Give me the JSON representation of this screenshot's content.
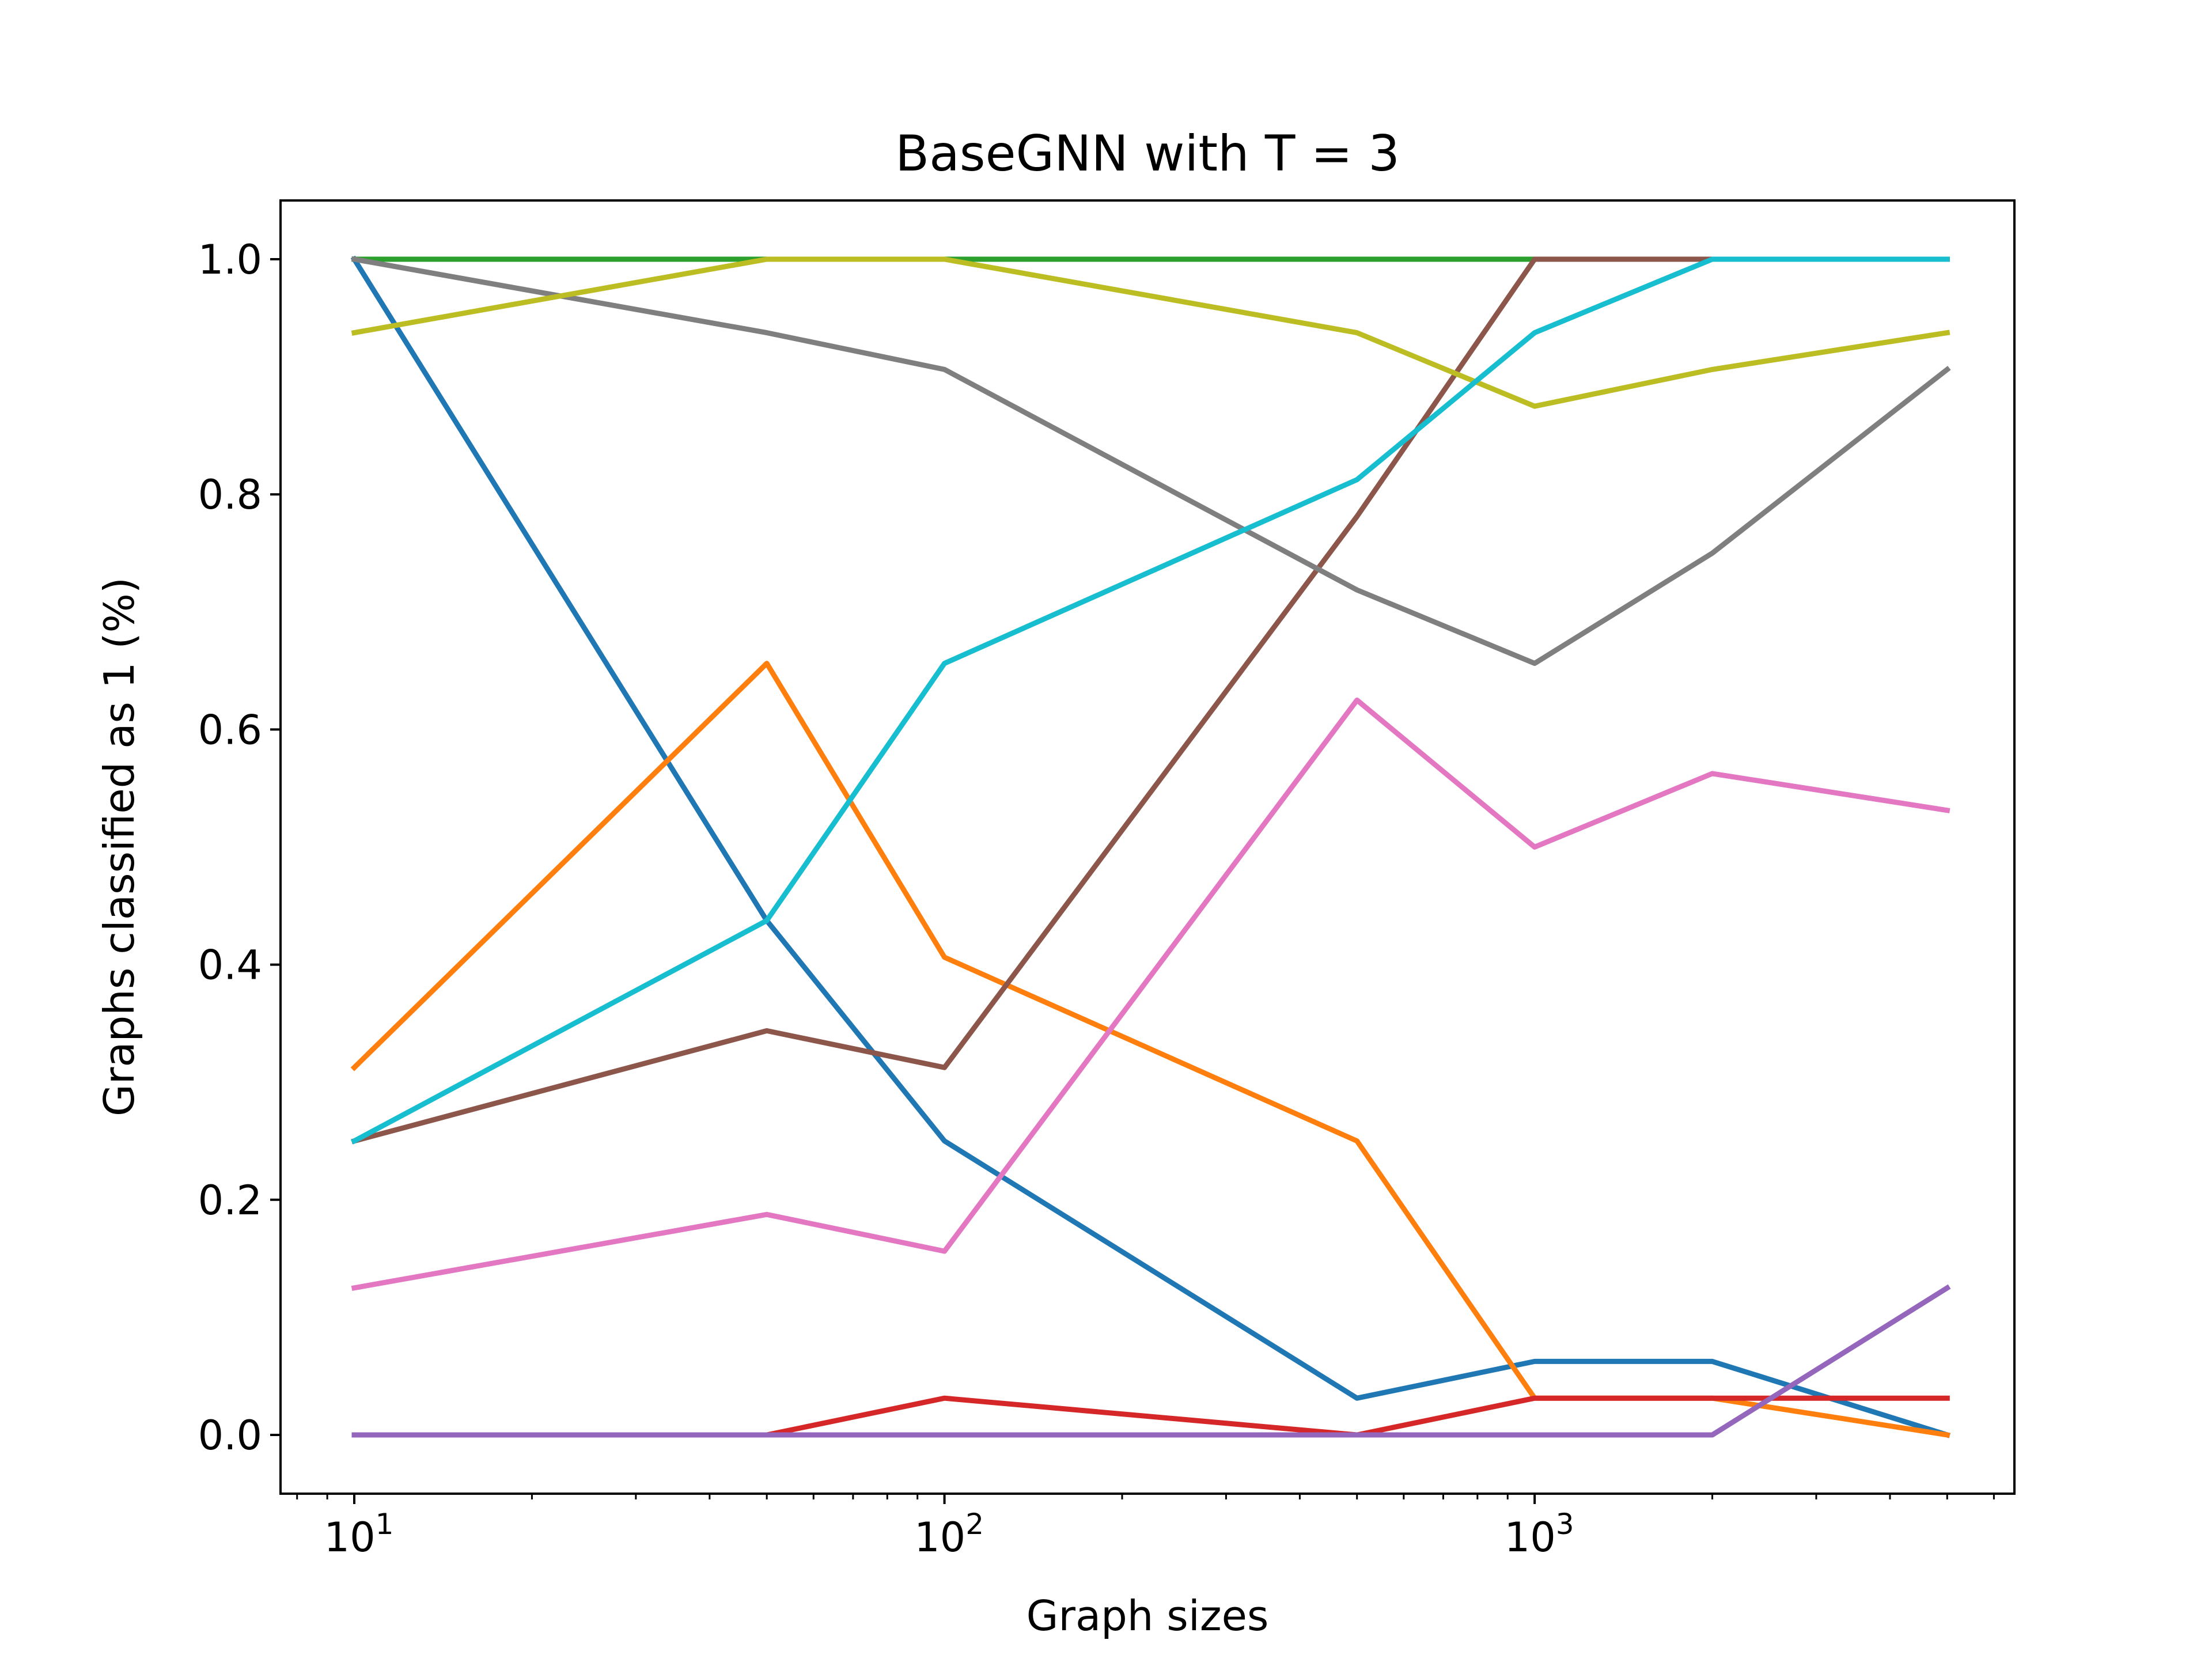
{
  "chart_data": {
    "type": "line",
    "title": "BaseGNN with T = 3",
    "xlabel": "Graph sizes",
    "ylabel": "Graphs classified as 1 (%)",
    "x_scale": "log",
    "xlim": [
      7.5,
      6500
    ],
    "ylim": [
      -0.05,
      1.05
    ],
    "x_ticks": [
      {
        "value": 10,
        "base": "10",
        "exp": "1"
      },
      {
        "value": 100,
        "base": "10",
        "exp": "2"
      },
      {
        "value": 1000,
        "base": "10",
        "exp": "3"
      }
    ],
    "y_ticks": [
      {
        "value": 0.0,
        "label": "0.0"
      },
      {
        "value": 0.2,
        "label": "0.2"
      },
      {
        "value": 0.4,
        "label": "0.4"
      },
      {
        "value": 0.6,
        "label": "0.6"
      },
      {
        "value": 0.8,
        "label": "0.8"
      },
      {
        "value": 1.0,
        "label": "1.0"
      }
    ],
    "grid": false,
    "x": [
      10,
      50,
      100,
      500,
      1000,
      2000,
      5000
    ],
    "series": [
      {
        "color": "#1f77b4",
        "values": [
          1.0,
          0.4375,
          0.25,
          0.03125,
          0.0625,
          0.0625,
          0.0
        ]
      },
      {
        "color": "#ff7f0e",
        "values": [
          0.3125,
          0.65625,
          0.40625,
          0.25,
          0.03125,
          0.03125,
          0.0
        ]
      },
      {
        "color": "#2ca02c",
        "values": [
          1.0,
          1.0,
          1.0,
          1.0,
          1.0,
          1.0,
          1.0
        ]
      },
      {
        "color": "#d62728",
        "values": [
          0.0,
          0.0,
          0.03125,
          0.0,
          0.03125,
          0.03125,
          0.03125
        ]
      },
      {
        "color": "#9467bd",
        "values": [
          0.0,
          0.0,
          0.0,
          0.0,
          0.0,
          0.0,
          0.125
        ]
      },
      {
        "color": "#8c564b",
        "values": [
          0.25,
          0.34375,
          0.3125,
          0.78125,
          1.0,
          1.0,
          1.0
        ]
      },
      {
        "color": "#e377c2",
        "values": [
          0.125,
          0.1875,
          0.15625,
          0.625,
          0.5,
          0.5625,
          0.53125
        ]
      },
      {
        "color": "#7f7f7f",
        "values": [
          1.0,
          0.9375,
          0.90625,
          0.71875,
          0.65625,
          0.75,
          0.90625
        ]
      },
      {
        "color": "#bcbd22",
        "values": [
          0.9375,
          1.0,
          1.0,
          0.9375,
          0.875,
          0.90625,
          0.9375
        ]
      },
      {
        "color": "#17becf",
        "values": [
          0.25,
          0.4375,
          0.65625,
          0.8125,
          0.9375,
          1.0,
          1.0
        ]
      }
    ]
  }
}
